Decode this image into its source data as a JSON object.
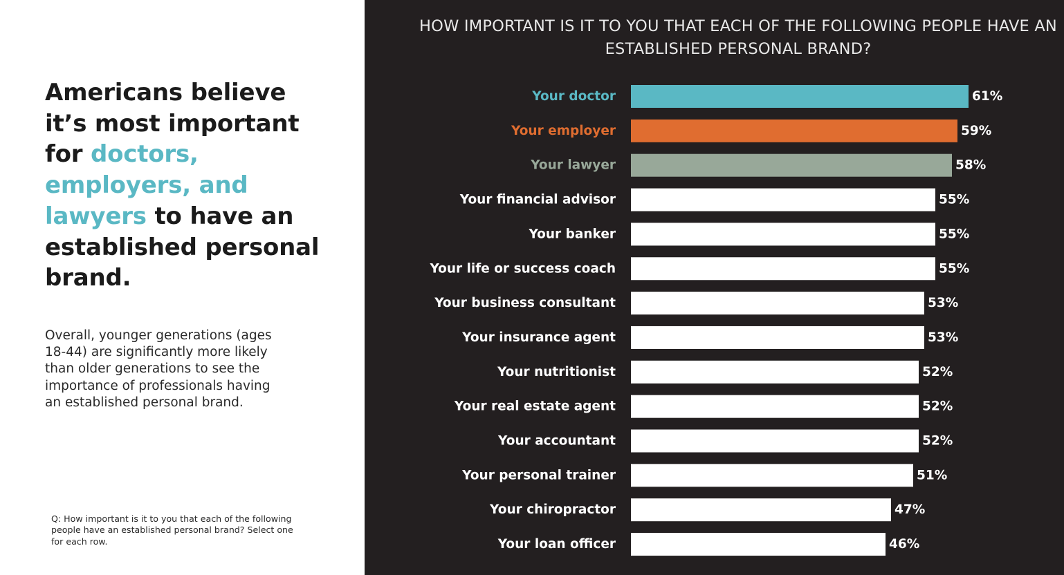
{
  "headline": {
    "part1": "Americans believe it’s most important for ",
    "highlight": "doctors, employers, and lawyers",
    "part2": " to have an established personal brand."
  },
  "body_text": "Overall, younger generations (ages 18-44) are significantly more likely than older generations to see the importance of professionals having an established personal brand.",
  "footnote": "Q: How important is it to you that each of the following people have an established personal brand? Select one for each row.",
  "colors": {
    "accent_teal": "#5ab8c4",
    "accent_orange": "#e06d30",
    "accent_sage": "#98a899",
    "bar_default": "#ffffff",
    "panel_dark": "#231f20"
  },
  "chart_data": {
    "type": "bar",
    "orientation": "horizontal",
    "title": "HOW IMPORTANT IS IT TO YOU THAT EACH OF THE FOLLOWING PEOPLE HAVE AN ESTABLISHED PERSONAL BRAND?",
    "xlim": [
      0,
      61
    ],
    "categories": [
      "Your doctor",
      "Your employer",
      "Your lawyer",
      "Your financial advisor",
      "Your banker",
      "Your life or success coach",
      "Your business consultant",
      "Your insurance agent",
      "Your nutritionist",
      "Your real estate agent",
      "Your accountant",
      "Your personal trainer",
      "Your chiropractor",
      "Your loan officer"
    ],
    "values": [
      61,
      59,
      58,
      55,
      55,
      55,
      53,
      53,
      52,
      52,
      52,
      51,
      47,
      46
    ],
    "value_labels": [
      "61%",
      "59%",
      "58%",
      "55%",
      "55%",
      "55%",
      "53%",
      "53%",
      "52%",
      "52%",
      "52%",
      "51%",
      "47%",
      "46%"
    ],
    "bar_colors": [
      "#5ab8c4",
      "#e06d30",
      "#98a899",
      "#ffffff",
      "#ffffff",
      "#ffffff",
      "#ffffff",
      "#ffffff",
      "#ffffff",
      "#ffffff",
      "#ffffff",
      "#ffffff",
      "#ffffff",
      "#ffffff"
    ],
    "label_colors": [
      "#5ab8c4",
      "#e06d30",
      "#98a899",
      "#ffffff",
      "#ffffff",
      "#ffffff",
      "#ffffff",
      "#ffffff",
      "#ffffff",
      "#ffffff",
      "#ffffff",
      "#ffffff",
      "#ffffff",
      "#ffffff"
    ]
  }
}
